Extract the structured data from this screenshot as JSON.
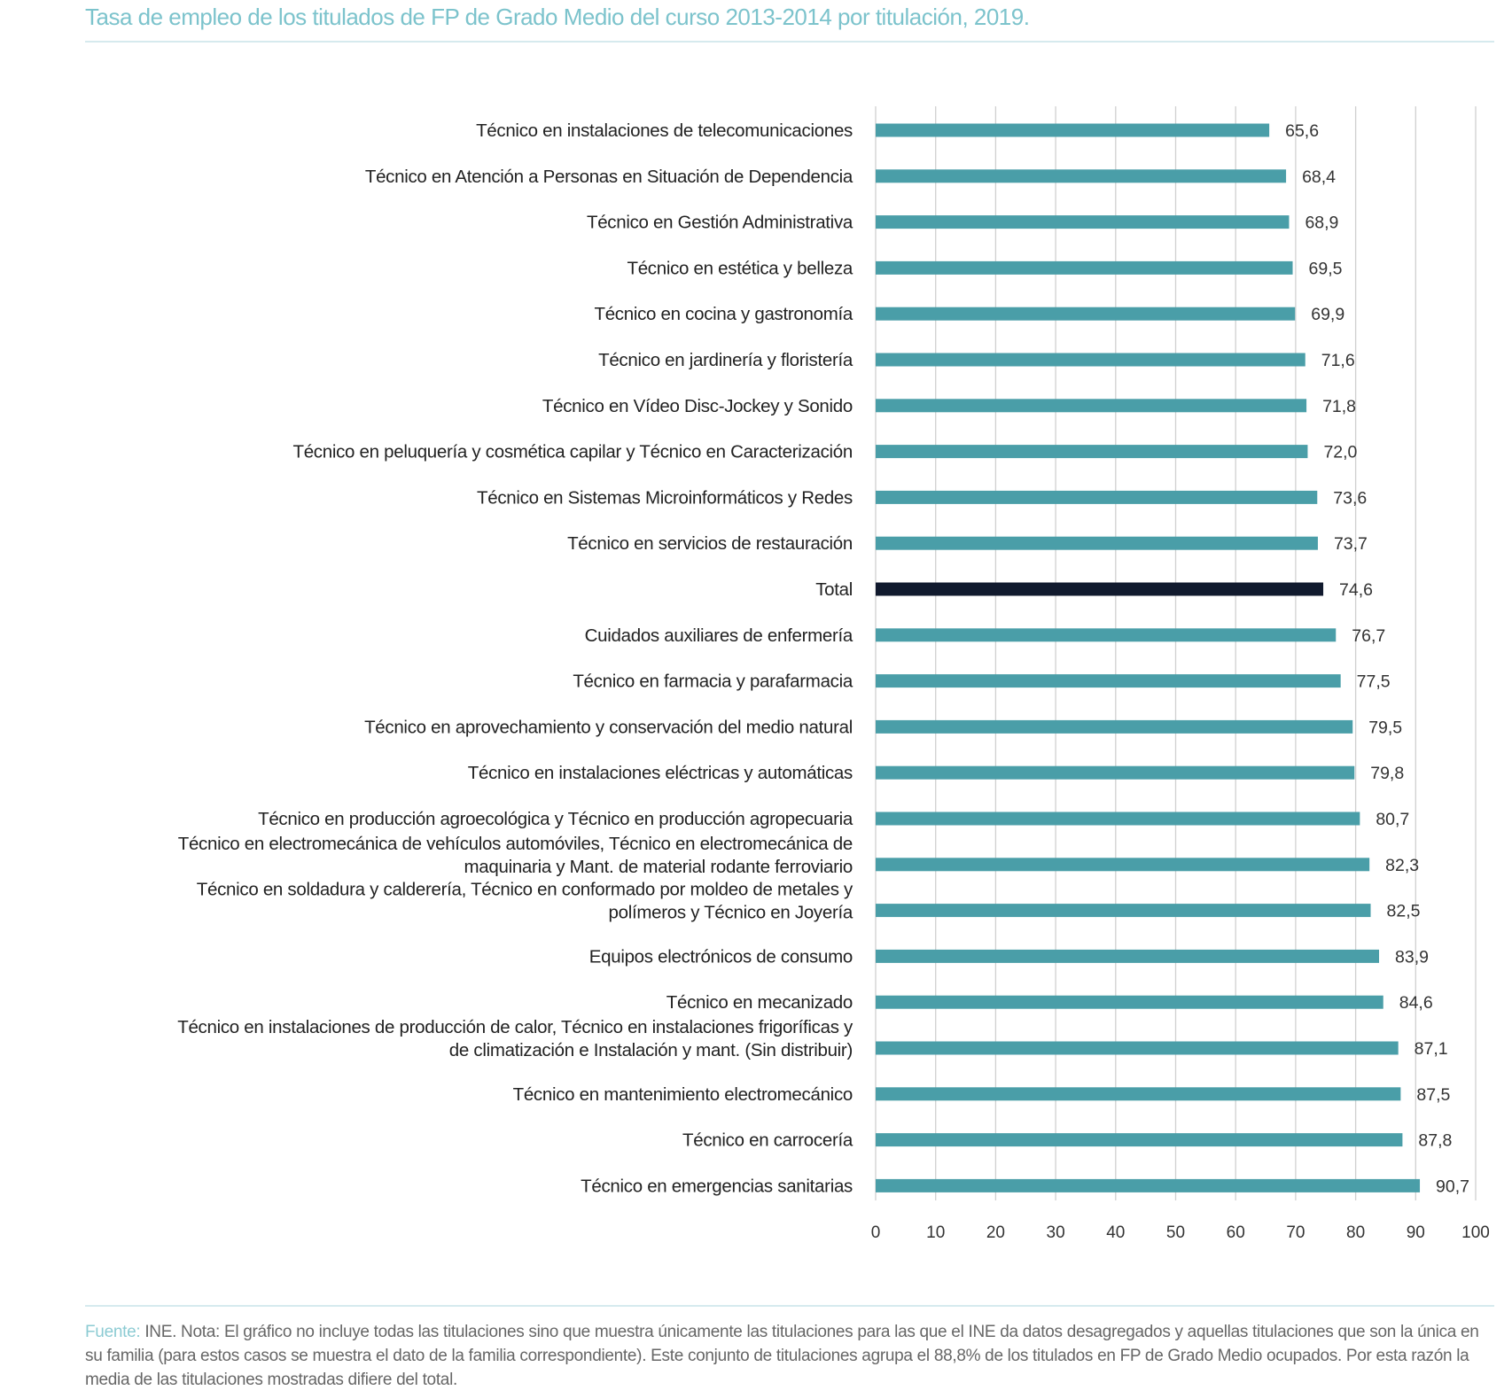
{
  "title": "Tasa de empleo de los titulados de FP de Grado Medio del curso 2013-2014 por titulación, 2019.",
  "footnote": {
    "source_label": "Fuente:",
    "text": " INE. Nota: El gráfico no incluye todas las titulaciones sino que muestra únicamente las titulaciones para las que el INE da datos desagregados y aquellas titulaciones que son la única en su familia (para estos casos se muestra el dato de la familia correspondiente). Este conjunto de titulaciones agrupa el 88,8% de los titulados en FP de Grado Medio ocupados. Por esta razón la media de las titulaciones mostradas difiere del total."
  },
  "colors": {
    "bar": "#4a9ea8",
    "total_bar": "#111a2e",
    "grid": "#d0d0d0"
  },
  "chart_data": {
    "type": "bar",
    "orientation": "horizontal",
    "categories": [
      "Técnico en instalaciones de telecomunicaciones",
      "Técnico en Atención a Personas en Situación de Dependencia",
      "Técnico en Gestión Administrativa",
      "Técnico en estética y belleza",
      "Técnico en cocina y gastronomía",
      "Técnico en jardinería y floristería",
      "Técnico en Vídeo Disc-Jockey y Sonido",
      "Técnico en peluquería y cosmética capilar y Técnico en Caracterización",
      "Técnico en Sistemas Microinformáticos y Redes",
      "Técnico en servicios de restauración",
      "Total",
      "Cuidados auxiliares de enfermería",
      "Técnico en farmacia y parafarmacia",
      "Técnico en aprovechamiento y conservación del medio natural",
      "Técnico en instalaciones eléctricas y automáticas",
      "Técnico en producción agroecológica y Técnico en producción agropecuaria",
      "Técnico en electromecánica de vehículos automóviles, Técnico en electromecánica de|maquinaria y Mant. de material rodante ferroviario",
      "Técnico en soldadura y calderería, Técnico en conformado por moldeo de metales y|polímeros y Técnico en Joyería",
      "Equipos electrónicos de consumo",
      "Técnico en mecanizado",
      "Técnico en instalaciones de producción de calor, Técnico en instalaciones frigoríficas y|de climatización e Instalación y mant. (Sin distribuir)",
      "Técnico en mantenimiento electromecánico",
      "Técnico en carrocería",
      "Técnico en emergencias sanitarias"
    ],
    "values": [
      65.6,
      68.4,
      68.9,
      69.5,
      69.9,
      71.6,
      71.8,
      72.0,
      73.6,
      73.7,
      74.6,
      76.7,
      77.5,
      79.5,
      79.8,
      80.7,
      82.3,
      82.5,
      83.9,
      84.6,
      87.1,
      87.5,
      87.8,
      90.7
    ],
    "value_labels": [
      "65,6",
      "68,4",
      "68,9",
      "69,5",
      "69,9",
      "71,6",
      "71,8",
      "72,0",
      "73,6",
      "73,7",
      "74,6",
      "76,7",
      "77,5",
      "79,5",
      "79,8",
      "80,7",
      "82,3",
      "82,5",
      "83,9",
      "84,6",
      "87,1",
      "87,5",
      "87,8",
      "90,7"
    ],
    "highlight": "Total",
    "xlim": [
      0,
      100
    ],
    "xticks": [
      0,
      10,
      20,
      30,
      40,
      50,
      60,
      70,
      80,
      90,
      100
    ],
    "grid": "vertical",
    "xlabel": "",
    "ylabel": ""
  }
}
